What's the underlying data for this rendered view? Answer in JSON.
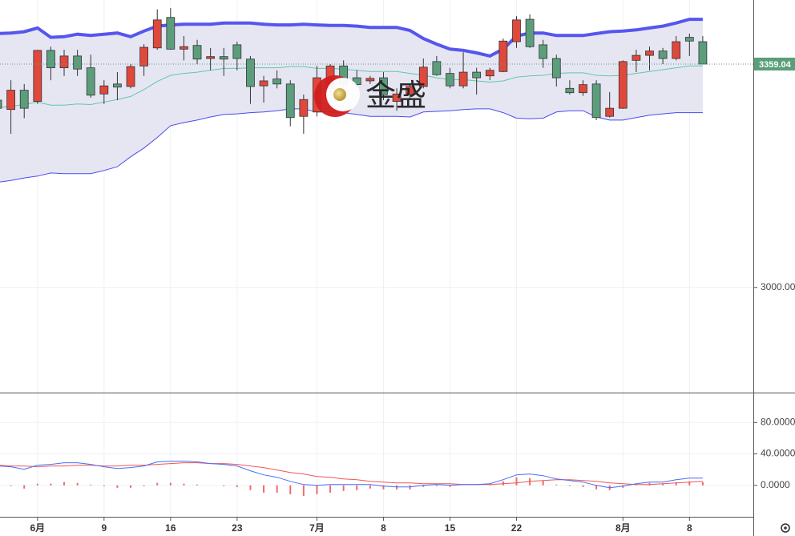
{
  "chart_data": [
    {
      "type": "candlestick",
      "watermark": "金盛",
      "xlim": [
        0.18,
        56.8
      ],
      "xticks": [
        {
          "value": 3,
          "label": "6月"
        },
        {
          "value": 8,
          "label": "9"
        },
        {
          "value": 13,
          "label": "16"
        },
        {
          "value": 18,
          "label": "23"
        },
        {
          "value": 24,
          "label": "7月"
        },
        {
          "value": 29,
          "label": "8"
        },
        {
          "value": 34,
          "label": "15"
        },
        {
          "value": 39,
          "label": "22"
        },
        {
          "value": 47,
          "label": "8月"
        },
        {
          "value": 52,
          "label": "8"
        }
      ],
      "ylim": [
        2831,
        3462
      ],
      "yticks": [
        {
          "value": 3000,
          "label": "3000.00"
        }
      ],
      "grid": true,
      "last_price": 3359.04,
      "last_price_color": "#5a9e7a",
      "up_color": "#e0483c",
      "down_color": "#5c9e7c",
      "open": [
        3301,
        3286,
        3317,
        3299,
        3381,
        3353,
        3372,
        3353,
        3311,
        3327,
        3323,
        3356,
        3385,
        3434,
        3383,
        3389,
        3368,
        3371,
        3390,
        3367,
        3324,
        3335,
        3327,
        3275,
        3282,
        3320,
        3356,
        3337,
        3332,
        3337,
        3299,
        3310,
        3323,
        3363,
        3344,
        3324,
        3346,
        3340,
        3347,
        3395,
        3431,
        3390,
        3368,
        3320,
        3313,
        3327,
        3275,
        3288,
        3365,
        3373,
        3380,
        3368,
        3402,
        3395
      ],
      "high": [
        3308,
        3333,
        3327,
        3382,
        3387,
        3382,
        3382,
        3374,
        3333,
        3346,
        3359,
        3391,
        3447,
        3449,
        3404,
        3398,
        3385,
        3385,
        3395,
        3372,
        3340,
        3349,
        3333,
        3310,
        3356,
        3359,
        3365,
        3349,
        3340,
        3346,
        3320,
        3327,
        3368,
        3372,
        3353,
        3378,
        3353,
        3353,
        3400,
        3436,
        3439,
        3398,
        3374,
        3333,
        3333,
        3333,
        3314,
        3365,
        3382,
        3387,
        3385,
        3404,
        3408,
        3404
      ],
      "low": [
        3282,
        3247,
        3272,
        3295,
        3333,
        3340,
        3340,
        3305,
        3295,
        3301,
        3320,
        3340,
        3382,
        3382,
        3365,
        3359,
        3349,
        3340,
        3349,
        3295,
        3297,
        3320,
        3259,
        3247,
        3275,
        3314,
        3320,
        3320,
        3327,
        3301,
        3284,
        3301,
        3320,
        3340,
        3320,
        3320,
        3310,
        3333,
        3346,
        3385,
        3385,
        3353,
        3323,
        3310,
        3308,
        3269,
        3273,
        3287,
        3346,
        3349,
        3359,
        3365,
        3372,
        3359
      ],
      "close": [
        3288,
        3317,
        3288,
        3381,
        3353,
        3372,
        3351,
        3309,
        3324,
        3322,
        3355,
        3386,
        3430,
        3383,
        3387,
        3367,
        3371,
        3367,
        3368,
        3323,
        3332,
        3327,
        3273,
        3302,
        3337,
        3356,
        3327,
        3326,
        3336,
        3310,
        3311,
        3323,
        3354,
        3342,
        3324,
        3346,
        3337,
        3349,
        3396,
        3430,
        3387,
        3368,
        3337,
        3313,
        3326,
        3273,
        3288,
        3363,
        3373,
        3380,
        3368,
        3395,
        3396,
        3359.04
      ],
      "bollinger": {
        "upper_color": "#5656ee",
        "middle_color": "#62c7a7",
        "lower_color": "#4b4bef",
        "fill_color": "#e6e6f3",
        "upper": [
          3408,
          3409,
          3411,
          3417,
          3402,
          3403,
          3407,
          3405,
          3407,
          3409,
          3403,
          3412,
          3420,
          3422,
          3423,
          3423,
          3423,
          3425,
          3425,
          3425,
          3423,
          3422,
          3422,
          3423,
          3422,
          3421,
          3421,
          3420,
          3418,
          3418,
          3418,
          3413,
          3400,
          3391,
          3383,
          3381,
          3377,
          3372,
          3383,
          3404,
          3409,
          3409,
          3405,
          3405,
          3405,
          3408,
          3411,
          3412,
          3414,
          3417,
          3420,
          3425,
          3431,
          3431
        ],
        "middle": [
          3289,
          3291,
          3294,
          3298,
          3293,
          3293,
          3295,
          3294,
          3298,
          3302,
          3307,
          3318,
          3331,
          3341,
          3344,
          3346,
          3349,
          3352,
          3352,
          3353,
          3353,
          3353,
          3355,
          3355,
          3352,
          3352,
          3351,
          3349,
          3347,
          3347,
          3347,
          3344,
          3341,
          3337,
          3334,
          3334,
          3332,
          3330,
          3332,
          3338,
          3340,
          3341,
          3344,
          3345,
          3345,
          3341,
          3340,
          3341,
          3344,
          3347,
          3350,
          3353,
          3356,
          3356
        ],
        "lower": [
          3169,
          3172,
          3176,
          3179,
          3184,
          3183,
          3183,
          3183,
          3188,
          3194,
          3210,
          3224,
          3241,
          3260,
          3265,
          3269,
          3274,
          3278,
          3279,
          3281,
          3282,
          3284,
          3287,
          3287,
          3282,
          3282,
          3281,
          3278,
          3275,
          3275,
          3275,
          3274,
          3282,
          3283,
          3284,
          3286,
          3287,
          3287,
          3281,
          3272,
          3271,
          3272,
          3282,
          3284,
          3284,
          3274,
          3269,
          3269,
          3273,
          3277,
          3279,
          3281,
          3281,
          3281
        ]
      }
    },
    {
      "type": "macd",
      "xlim": [
        0.18,
        56.8
      ],
      "ylim": [
        -40,
        117
      ],
      "yticks": [
        {
          "value": 80,
          "label": "80.0000"
        },
        {
          "value": 40,
          "label": "40.0000"
        },
        {
          "value": 0,
          "label": "0.0000"
        }
      ],
      "grid": true,
      "macd_color": "#4a6cf7",
      "signal_color": "#f25555",
      "hist_color": "#f06a6a",
      "macd": [
        24.6,
        23.6,
        20.5,
        25.7,
        26.7,
        28.7,
        28.7,
        26.7,
        23.6,
        21.5,
        22.6,
        24.6,
        29.8,
        30.8,
        30.8,
        29.8,
        27.7,
        26.7,
        24.6,
        18.5,
        13.3,
        10.3,
        5.1,
        1.0,
        0,
        1.0,
        1.0,
        1.0,
        1.0,
        -1.0,
        -2.1,
        -2.1,
        0,
        1.0,
        0,
        1.0,
        1.0,
        2.1,
        7.2,
        13.3,
        14.4,
        12.3,
        8.2,
        6.2,
        4.1,
        0,
        -3.1,
        -1.0,
        2.1,
        4.1,
        4.1,
        7.2,
        9.2,
        9.2
      ],
      "signal": [
        25.7,
        24.6,
        24.6,
        23.6,
        24.6,
        24.6,
        25.7,
        25.7,
        24.6,
        24.6,
        25.7,
        25.7,
        26.7,
        27.7,
        28.7,
        28.7,
        27.7,
        27.7,
        26.7,
        24.6,
        22.6,
        19.5,
        16.4,
        14.4,
        11.3,
        10.3,
        8.2,
        7.2,
        5.1,
        4.1,
        3.1,
        3.1,
        2.1,
        2.1,
        2.1,
        1.0,
        1.0,
        1.0,
        2.1,
        3.1,
        5.1,
        6.2,
        7.2,
        7.2,
        6.2,
        5.1,
        3.1,
        2.1,
        1.0,
        1.0,
        2.1,
        3.1,
        4.1,
        5.1
      ],
      "histogram": [
        -1.1,
        -1.0,
        -4.1,
        2.1,
        2.1,
        4.1,
        3.0,
        1.0,
        -1.0,
        -3.1,
        -3.1,
        -1.1,
        3.1,
        3.1,
        2.1,
        1.1,
        0,
        -1.0,
        -2.1,
        -6.1,
        -9.3,
        -9.2,
        -11.3,
        -13.4,
        -11.3,
        -9.3,
        -7.2,
        -6.2,
        -4.1,
        -5.1,
        -5.2,
        -5.2,
        -2.1,
        -1.1,
        -2.1,
        0,
        0,
        1.1,
        5.1,
        10.2,
        9.3,
        6.1,
        1.0,
        -1.0,
        -2.1,
        -5.1,
        -6.2,
        -3.1,
        1.1,
        3.1,
        2.0,
        4.1,
        5.1,
        4.1
      ]
    }
  ]
}
